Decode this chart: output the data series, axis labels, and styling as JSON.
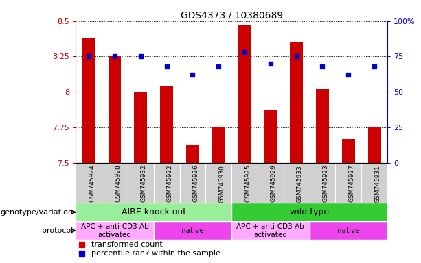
{
  "title": "GDS4373 / 10380689",
  "samples": [
    "GSM745924",
    "GSM745928",
    "GSM745932",
    "GSM745922",
    "GSM745926",
    "GSM745930",
    "GSM745925",
    "GSM745929",
    "GSM745933",
    "GSM745923",
    "GSM745927",
    "GSM745931"
  ],
  "red_values": [
    8.38,
    8.25,
    8.0,
    8.04,
    7.63,
    7.75,
    8.47,
    7.87,
    8.35,
    8.02,
    7.67,
    7.75
  ],
  "blue_values": [
    75,
    75,
    75,
    68,
    62,
    68,
    78,
    70,
    75,
    68,
    62,
    68
  ],
  "ymin": 7.5,
  "ymax": 8.5,
  "y_ticks": [
    7.5,
    7.75,
    8.0,
    8.25,
    8.5
  ],
  "y_ticks_labels": [
    "7.5",
    "7.75",
    "8",
    "8.25",
    "8.5"
  ],
  "right_yticks": [
    0,
    25,
    50,
    75,
    100
  ],
  "right_yticks_labels": [
    "0",
    "25",
    "50",
    "75",
    "100%"
  ],
  "red_color": "#cc0000",
  "blue_color": "#0000cc",
  "genotype_groups": [
    {
      "label": "AIRE knock out",
      "start": 0,
      "end": 6,
      "color": "#99ee99"
    },
    {
      "label": "wild type",
      "start": 6,
      "end": 12,
      "color": "#33cc33"
    }
  ],
  "protocol_groups": [
    {
      "label": "APC + anti-CD3 Ab\nactivated",
      "start": 0,
      "end": 3,
      "color": "#ffaaff"
    },
    {
      "label": "native",
      "start": 3,
      "end": 6,
      "color": "#ee44ee"
    },
    {
      "label": "APC + anti-CD3 Ab\nactivated",
      "start": 6,
      "end": 9,
      "color": "#ffaaff"
    },
    {
      "label": "native",
      "start": 9,
      "end": 12,
      "color": "#ee44ee"
    }
  ],
  "legend_red": "transformed count",
  "legend_blue": "percentile rank within the sample",
  "xlabel_genotype": "genotype/variation",
  "xlabel_protocol": "protocol",
  "bar_width": 0.5,
  "blue_marker_size": 5,
  "tick_label_bg": "#d0d0d0"
}
